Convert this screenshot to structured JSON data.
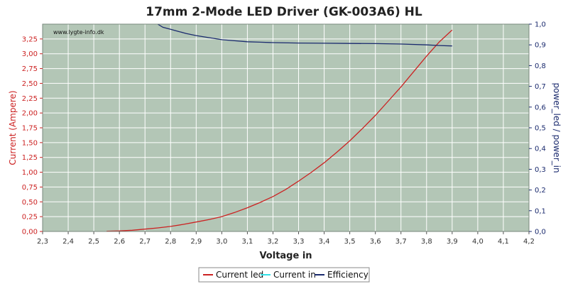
{
  "chart_data": {
    "type": "line",
    "title": "17mm 2-Mode LED Driver (GK-003A6) HL",
    "watermark": "www.lygte-info.dk",
    "xlabel": "Voltage in",
    "ylabel_left": "Current (Ampere)",
    "ylabel_right": "power_led / power_in",
    "xlim": [
      2.3,
      4.2
    ],
    "ylim_left": [
      0,
      3.5
    ],
    "ylim_right": [
      0,
      1.0
    ],
    "x_ticks": [
      "2,3",
      "2,4",
      "2,5",
      "2,6",
      "2,7",
      "2,8",
      "2,9",
      "3,0",
      "3,1",
      "3,2",
      "3,3",
      "3,4",
      "3,5",
      "3,6",
      "3,7",
      "3,8",
      "3,9",
      "4,0",
      "4,1",
      "4,2"
    ],
    "y_left_ticks": [
      "0,00",
      "0,25",
      "0,50",
      "0,75",
      "1,00",
      "1,25",
      "1,50",
      "1,75",
      "2,00",
      "2,25",
      "2,50",
      "2,75",
      "3,00",
      "3,25"
    ],
    "y_right_ticks": [
      "0,0",
      "0,1",
      "0,2",
      "0,3",
      "0,4",
      "0,5",
      "0,6",
      "0,7",
      "0,8",
      "0,9",
      "1,0"
    ],
    "grid": true,
    "legend_position": "bottom",
    "colors": {
      "plot_background": "#b3c6b6",
      "grid": "#ffffff",
      "current_led": "#cc2222",
      "current_in": "#33e0e6",
      "efficiency": "#1a2a6e",
      "left_axis": "#cc2222",
      "right_axis": "#1a2a6e"
    },
    "series": [
      {
        "name": "Current led",
        "axis": "left",
        "x": [
          2.55,
          2.6,
          2.65,
          2.7,
          2.75,
          2.8,
          2.85,
          2.9,
          2.95,
          3.0,
          3.05,
          3.1,
          3.15,
          3.2,
          3.25,
          3.3,
          3.35,
          3.4,
          3.45,
          3.5,
          3.55,
          3.6,
          3.65,
          3.7,
          3.75,
          3.8,
          3.85,
          3.9
        ],
        "values": [
          0.005,
          0.01,
          0.02,
          0.04,
          0.06,
          0.085,
          0.12,
          0.16,
          0.2,
          0.25,
          0.32,
          0.4,
          0.49,
          0.59,
          0.71,
          0.85,
          1.0,
          1.16,
          1.34,
          1.53,
          1.74,
          1.96,
          2.2,
          2.44,
          2.7,
          2.96,
          3.2,
          3.4
        ]
      },
      {
        "name": "Current in",
        "axis": "left",
        "x": [],
        "values": []
      },
      {
        "name": "Efficiency",
        "axis": "right",
        "x": [
          2.75,
          2.77,
          2.8,
          2.83,
          2.86,
          2.9,
          2.95,
          3.0,
          3.05,
          3.1,
          3.15,
          3.2,
          3.3,
          3.4,
          3.5,
          3.6,
          3.7,
          3.8,
          3.85,
          3.9
        ],
        "values": [
          1.0,
          0.985,
          0.975,
          0.965,
          0.955,
          0.945,
          0.935,
          0.925,
          0.92,
          0.915,
          0.913,
          0.911,
          0.909,
          0.908,
          0.907,
          0.906,
          0.904,
          0.9,
          0.897,
          0.895
        ]
      }
    ]
  }
}
